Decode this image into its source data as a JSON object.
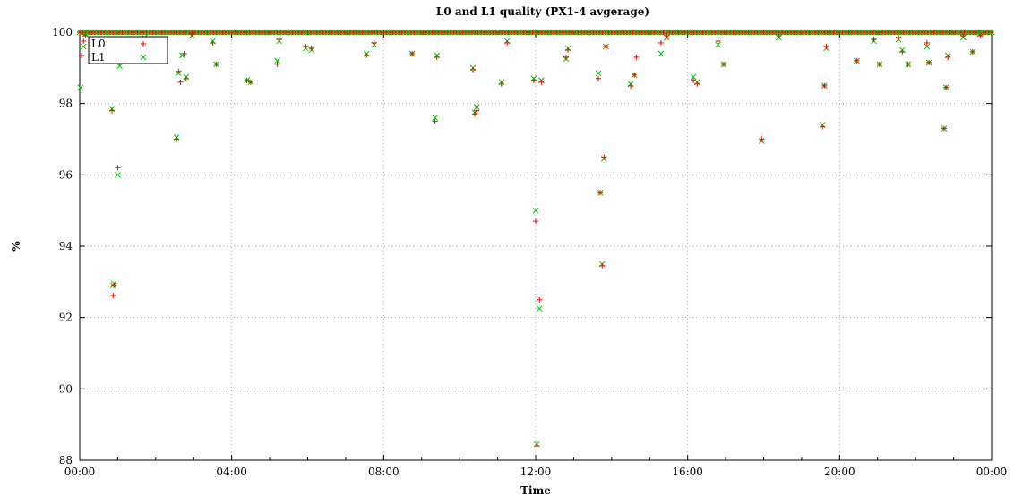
{
  "chart_data": {
    "type": "scatter",
    "title": "L0 and L1 quality (PX1-4 avgerage)",
    "xlabel": "Time",
    "ylabel": "%",
    "x_ticks": [
      "00:00",
      "04:00",
      "08:00",
      "12:00",
      "16:00",
      "20:00",
      "00:00"
    ],
    "x_range_hours": [
      0,
      24
    ],
    "ylim": [
      88,
      100
    ],
    "y_ticks": [
      88,
      90,
      92,
      94,
      96,
      98,
      100
    ],
    "grid": true,
    "legend_position": "top-left",
    "series": [
      {
        "name": "L0",
        "marker": "plus",
        "color": "#ff0000",
        "points": [
          [
            0.05,
            99.35
          ],
          [
            0.1,
            99.75
          ],
          [
            0.15,
            99.9
          ],
          [
            0.85,
            97.8
          ],
          [
            0.88,
            92.62
          ],
          [
            0.9,
            92.9
          ],
          [
            1.0,
            96.2
          ],
          [
            1.05,
            99.15
          ],
          [
            1.1,
            99.4
          ],
          [
            1.5,
            99.7
          ],
          [
            1.7,
            99.8
          ],
          [
            1.85,
            99.6
          ],
          [
            2.55,
            97.0
          ],
          [
            2.6,
            98.9
          ],
          [
            2.65,
            98.6
          ],
          [
            2.75,
            99.4
          ],
          [
            2.8,
            98.7
          ],
          [
            2.95,
            99.95
          ],
          [
            3.5,
            99.7
          ],
          [
            3.6,
            99.1
          ],
          [
            4.4,
            98.65
          ],
          [
            4.5,
            98.6
          ],
          [
            5.2,
            99.1
          ],
          [
            5.25,
            99.8
          ],
          [
            5.95,
            99.6
          ],
          [
            6.1,
            99.55
          ],
          [
            7.55,
            99.35
          ],
          [
            7.75,
            99.7
          ],
          [
            8.75,
            99.4
          ],
          [
            9.35,
            97.5
          ],
          [
            9.4,
            99.3
          ],
          [
            10.35,
            98.95
          ],
          [
            10.4,
            97.7
          ],
          [
            10.45,
            97.8
          ],
          [
            11.1,
            98.55
          ],
          [
            11.25,
            99.7
          ],
          [
            11.95,
            98.65
          ],
          [
            12.0,
            94.7
          ],
          [
            12.03,
            88.4
          ],
          [
            12.1,
            92.5
          ],
          [
            12.15,
            98.6
          ],
          [
            12.8,
            99.3
          ],
          [
            12.85,
            99.5
          ],
          [
            13.65,
            98.7
          ],
          [
            13.7,
            95.5
          ],
          [
            13.75,
            93.45
          ],
          [
            13.8,
            96.5
          ],
          [
            13.85,
            99.6
          ],
          [
            14.5,
            98.5
          ],
          [
            14.6,
            98.8
          ],
          [
            14.65,
            99.3
          ],
          [
            15.3,
            99.7
          ],
          [
            15.45,
            99.9
          ],
          [
            16.15,
            98.65
          ],
          [
            16.25,
            98.55
          ],
          [
            16.8,
            99.75
          ],
          [
            16.95,
            99.1
          ],
          [
            17.95,
            97.0
          ],
          [
            18.4,
            99.9
          ],
          [
            19.55,
            97.35
          ],
          [
            19.6,
            98.5
          ],
          [
            19.65,
            99.6
          ],
          [
            20.45,
            99.2
          ],
          [
            20.9,
            99.8
          ],
          [
            21.05,
            99.1
          ],
          [
            21.55,
            99.85
          ],
          [
            21.65,
            99.45
          ],
          [
            21.8,
            99.1
          ],
          [
            22.3,
            99.7
          ],
          [
            22.35,
            99.15
          ],
          [
            22.8,
            98.45
          ],
          [
            22.85,
            99.3
          ],
          [
            22.75,
            97.3
          ],
          [
            23.25,
            99.9
          ],
          [
            23.5,
            99.45
          ],
          [
            23.7,
            99.9
          ]
        ]
      },
      {
        "name": "L1",
        "marker": "cross",
        "color": "#00c000",
        "points": [
          [
            0.02,
            98.45
          ],
          [
            0.1,
            99.6
          ],
          [
            0.15,
            99.95
          ],
          [
            0.85,
            97.85
          ],
          [
            0.88,
            92.9
          ],
          [
            0.9,
            92.95
          ],
          [
            1.0,
            96.0
          ],
          [
            1.05,
            99.05
          ],
          [
            1.5,
            99.3
          ],
          [
            1.7,
            99.85
          ],
          [
            1.85,
            99.7
          ],
          [
            2.55,
            97.05
          ],
          [
            2.6,
            98.85
          ],
          [
            2.7,
            99.35
          ],
          [
            2.8,
            98.75
          ],
          [
            2.95,
            99.9
          ],
          [
            3.5,
            99.75
          ],
          [
            3.6,
            99.1
          ],
          [
            4.4,
            98.65
          ],
          [
            4.5,
            98.6
          ],
          [
            5.2,
            99.2
          ],
          [
            5.25,
            99.75
          ],
          [
            5.95,
            99.55
          ],
          [
            6.1,
            99.5
          ],
          [
            7.55,
            99.4
          ],
          [
            7.75,
            99.65
          ],
          [
            8.75,
            99.4
          ],
          [
            9.35,
            97.6
          ],
          [
            9.4,
            99.35
          ],
          [
            10.35,
            99.0
          ],
          [
            10.4,
            97.75
          ],
          [
            10.45,
            97.9
          ],
          [
            11.1,
            98.6
          ],
          [
            11.25,
            99.75
          ],
          [
            11.95,
            98.7
          ],
          [
            12.0,
            95.0
          ],
          [
            12.03,
            88.45
          ],
          [
            12.1,
            92.25
          ],
          [
            12.15,
            98.65
          ],
          [
            12.8,
            99.25
          ],
          [
            12.85,
            99.55
          ],
          [
            13.65,
            98.85
          ],
          [
            13.7,
            95.5
          ],
          [
            13.75,
            93.5
          ],
          [
            13.8,
            96.45
          ],
          [
            13.85,
            99.6
          ],
          [
            14.5,
            98.55
          ],
          [
            14.6,
            98.8
          ],
          [
            15.3,
            99.4
          ],
          [
            15.45,
            99.85
          ],
          [
            16.15,
            98.75
          ],
          [
            16.25,
            98.6
          ],
          [
            16.8,
            99.65
          ],
          [
            16.95,
            99.1
          ],
          [
            17.95,
            96.95
          ],
          [
            18.4,
            99.85
          ],
          [
            19.55,
            97.4
          ],
          [
            19.6,
            98.5
          ],
          [
            19.65,
            99.55
          ],
          [
            20.45,
            99.2
          ],
          [
            20.9,
            99.75
          ],
          [
            21.05,
            99.1
          ],
          [
            21.55,
            99.8
          ],
          [
            21.65,
            99.5
          ],
          [
            21.8,
            99.1
          ],
          [
            22.3,
            99.6
          ],
          [
            22.35,
            99.15
          ],
          [
            22.8,
            98.45
          ],
          [
            22.85,
            99.35
          ],
          [
            22.75,
            97.3
          ],
          [
            23.25,
            99.85
          ],
          [
            23.5,
            99.45
          ],
          [
            23.7,
            99.95
          ]
        ]
      }
    ]
  }
}
